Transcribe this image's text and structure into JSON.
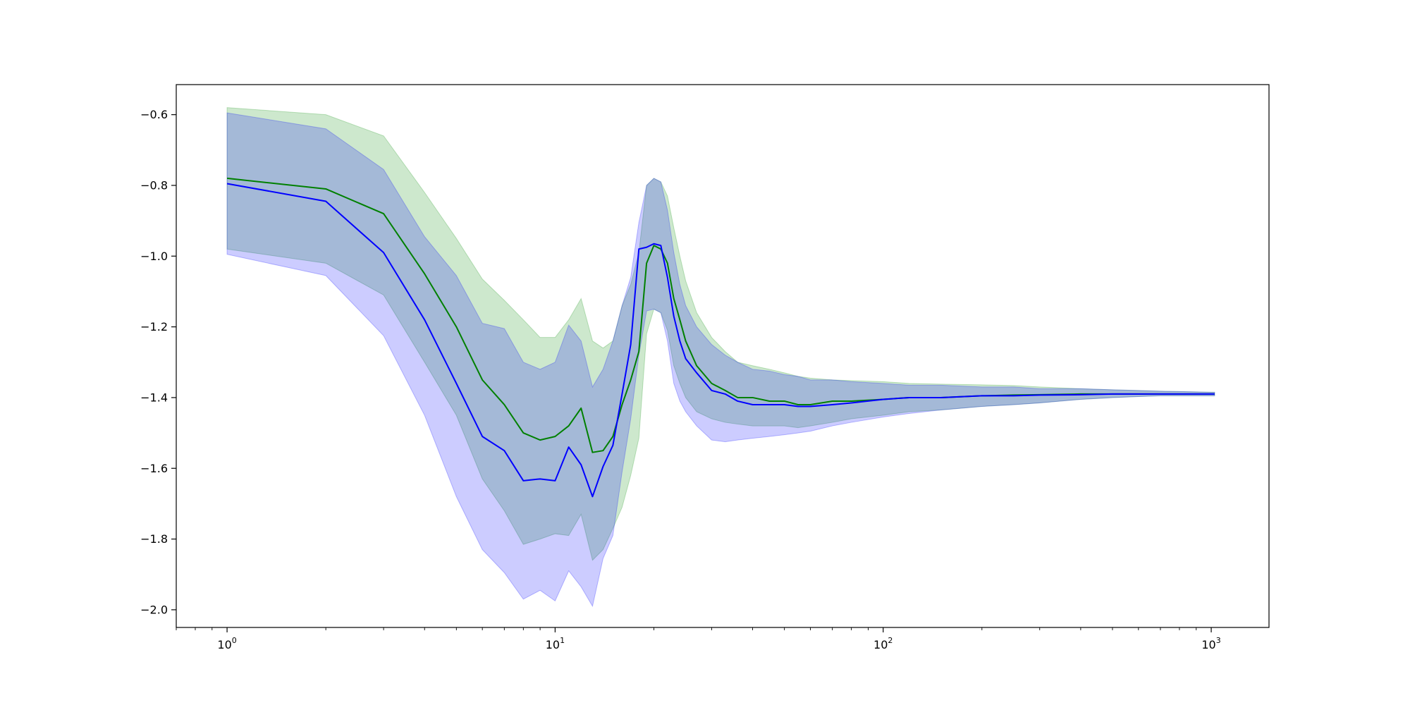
{
  "chart_data": {
    "type": "line",
    "title": "",
    "xlabel": "",
    "ylabel": "",
    "xscale": "log",
    "xlim": [
      0.7,
      1500
    ],
    "ylim": [
      -2.05,
      -0.515
    ],
    "grid": false,
    "legend": "none",
    "x_ticks": [
      {
        "value": 1,
        "base": "10",
        "exp": "0"
      },
      {
        "value": 10,
        "base": "10",
        "exp": "1"
      },
      {
        "value": 100,
        "base": "10",
        "exp": "2"
      },
      {
        "value": 1000,
        "base": "10",
        "exp": "3"
      }
    ],
    "y_ticks": [
      {
        "value": -0.6,
        "label": "−0.6"
      },
      {
        "value": -0.8,
        "label": "−0.8"
      },
      {
        "value": -1.0,
        "label": "−1.0"
      },
      {
        "value": -1.2,
        "label": "−1.2"
      },
      {
        "value": -1.4,
        "label": "−1.4"
      },
      {
        "value": -1.6,
        "label": "−1.6"
      },
      {
        "value": -1.8,
        "label": "−1.8"
      },
      {
        "value": -2.0,
        "label": "−2.0"
      }
    ],
    "x": [
      1,
      2,
      3,
      4,
      5,
      6,
      7,
      8,
      9,
      10,
      11,
      12,
      13,
      14,
      15,
      16,
      17,
      18,
      19,
      20,
      21,
      22,
      23,
      24,
      25,
      27,
      30,
      33,
      36,
      40,
      45,
      50,
      55,
      60,
      70,
      80,
      100,
      120,
      150,
      200,
      250,
      300,
      400,
      500,
      600,
      700,
      800,
      900,
      1000,
      1024
    ],
    "series": [
      {
        "color": "#008000",
        "band_color": "#2ca02c",
        "band_opacity": 0.24,
        "values": [
          -0.78,
          -0.81,
          -0.88,
          -1.05,
          -1.2,
          -1.35,
          -1.42,
          -1.5,
          -1.52,
          -1.51,
          -1.48,
          -1.43,
          -1.555,
          -1.55,
          -1.51,
          -1.42,
          -1.35,
          -1.27,
          -1.02,
          -0.97,
          -0.98,
          -1.02,
          -1.12,
          -1.18,
          -1.24,
          -1.31,
          -1.36,
          -1.38,
          -1.4,
          -1.4,
          -1.41,
          -1.41,
          -1.42,
          -1.42,
          -1.41,
          -1.41,
          -1.405,
          -1.4,
          -1.4,
          -1.395,
          -1.393,
          -1.392,
          -1.39,
          -1.39,
          -1.39,
          -1.39,
          -1.39,
          -1.39,
          -1.39,
          -1.39
        ],
        "upper": [
          -0.58,
          -0.6,
          -0.66,
          -0.82,
          -0.95,
          -1.065,
          -1.125,
          -1.18,
          -1.23,
          -1.23,
          -1.18,
          -1.12,
          -1.24,
          -1.26,
          -1.24,
          -1.14,
          -1.08,
          -0.99,
          -0.8,
          -0.78,
          -0.79,
          -0.83,
          -0.92,
          -1.0,
          -1.07,
          -1.16,
          -1.23,
          -1.27,
          -1.3,
          -1.31,
          -1.32,
          -1.33,
          -1.34,
          -1.345,
          -1.35,
          -1.352,
          -1.355,
          -1.36,
          -1.362,
          -1.364,
          -1.366,
          -1.37,
          -1.375,
          -1.378,
          -1.38,
          -1.382,
          -1.383,
          -1.384,
          -1.385,
          -1.385
        ],
        "lower": [
          -0.98,
          -1.02,
          -1.11,
          -1.3,
          -1.45,
          -1.63,
          -1.72,
          -1.815,
          -1.8,
          -1.785,
          -1.79,
          -1.73,
          -1.86,
          -1.83,
          -1.77,
          -1.71,
          -1.62,
          -1.515,
          -1.22,
          -1.15,
          -1.16,
          -1.21,
          -1.31,
          -1.36,
          -1.4,
          -1.44,
          -1.46,
          -1.47,
          -1.475,
          -1.48,
          -1.48,
          -1.48,
          -1.485,
          -1.48,
          -1.47,
          -1.46,
          -1.45,
          -1.44,
          -1.435,
          -1.425,
          -1.42,
          -1.415,
          -1.405,
          -1.4,
          -1.397,
          -1.395,
          -1.395,
          -1.395,
          -1.395,
          -1.395
        ]
      },
      {
        "color": "#0000ff",
        "band_color": "#0000ff",
        "band_opacity": 0.2,
        "values": [
          -0.795,
          -0.845,
          -0.99,
          -1.18,
          -1.36,
          -1.51,
          -1.55,
          -1.635,
          -1.63,
          -1.635,
          -1.54,
          -1.59,
          -1.68,
          -1.595,
          -1.535,
          -1.39,
          -1.25,
          -0.98,
          -0.975,
          -0.965,
          -0.97,
          -1.06,
          -1.17,
          -1.24,
          -1.29,
          -1.33,
          -1.38,
          -1.39,
          -1.41,
          -1.42,
          -1.42,
          -1.42,
          -1.425,
          -1.425,
          -1.42,
          -1.415,
          -1.405,
          -1.4,
          -1.4,
          -1.395,
          -1.395,
          -1.393,
          -1.392,
          -1.39,
          -1.39,
          -1.39,
          -1.39,
          -1.39,
          -1.39,
          -1.39
        ],
        "upper": [
          -0.595,
          -0.64,
          -0.755,
          -0.945,
          -1.055,
          -1.19,
          -1.205,
          -1.3,
          -1.32,
          -1.3,
          -1.195,
          -1.24,
          -1.37,
          -1.32,
          -1.24,
          -1.14,
          -1.06,
          -0.905,
          -0.8,
          -0.78,
          -0.79,
          -0.87,
          -0.99,
          -1.08,
          -1.14,
          -1.2,
          -1.25,
          -1.28,
          -1.3,
          -1.32,
          -1.325,
          -1.335,
          -1.34,
          -1.35,
          -1.35,
          -1.355,
          -1.36,
          -1.365,
          -1.365,
          -1.37,
          -1.37,
          -1.375,
          -1.375,
          -1.378,
          -1.38,
          -1.382,
          -1.383,
          -1.384,
          -1.385,
          -1.385
        ],
        "lower": [
          -0.995,
          -1.055,
          -1.225,
          -1.45,
          -1.68,
          -1.83,
          -1.895,
          -1.97,
          -1.945,
          -1.975,
          -1.89,
          -1.935,
          -1.99,
          -1.855,
          -1.79,
          -1.61,
          -1.46,
          -1.28,
          -1.155,
          -1.15,
          -1.16,
          -1.24,
          -1.36,
          -1.41,
          -1.44,
          -1.48,
          -1.52,
          -1.525,
          -1.52,
          -1.515,
          -1.51,
          -1.505,
          -1.5,
          -1.495,
          -1.48,
          -1.47,
          -1.455,
          -1.445,
          -1.435,
          -1.425,
          -1.42,
          -1.415,
          -1.405,
          -1.4,
          -1.397,
          -1.395,
          -1.395,
          -1.395,
          -1.395,
          -1.395
        ]
      }
    ]
  }
}
